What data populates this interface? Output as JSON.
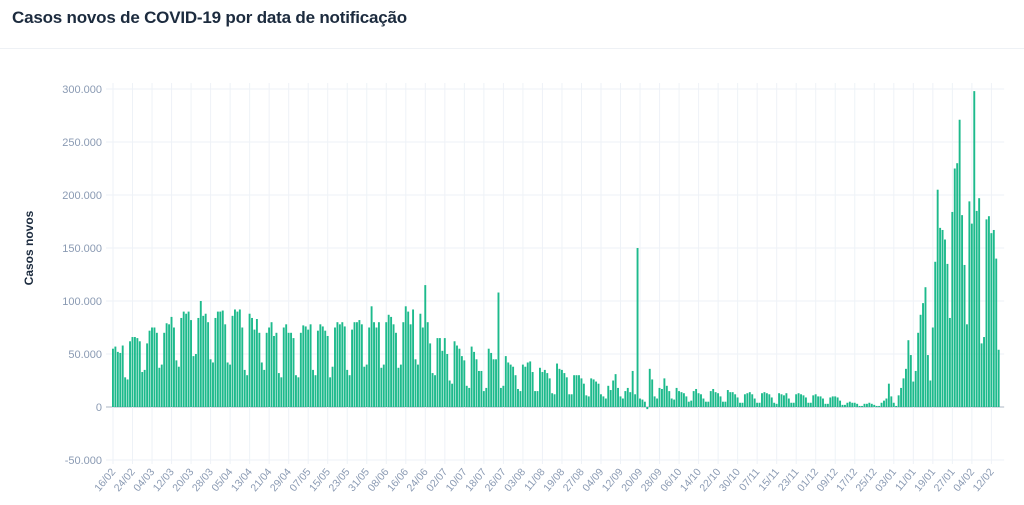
{
  "title": "Casos novos de COVID-19 por data de notificação",
  "chart_data": {
    "type": "bar",
    "title": "Casos novos de COVID-19 por data de notificação",
    "xlabel": "",
    "ylabel": "Casos novos",
    "ylim": [
      -50000,
      300000
    ],
    "yticks": [
      300000,
      250000,
      200000,
      150000,
      100000,
      50000,
      0,
      -50000
    ],
    "ytick_labels": [
      "300.000",
      "250.000",
      "200.000",
      "150.000",
      "100.000",
      "50.000",
      "0",
      "-50.000"
    ],
    "x_start": "16/02",
    "x_tick_every_days": 8,
    "x_tick_labels": [
      "16/02",
      "24/02",
      "04/03",
      "12/03",
      "20/03",
      "28/03",
      "05/04",
      "13/04",
      "21/04",
      "29/04",
      "07/05",
      "15/05",
      "23/05",
      "31/05",
      "08/06",
      "16/06",
      "24/06",
      "02/07",
      "10/07",
      "18/07",
      "26/07",
      "03/08",
      "11/08",
      "19/08",
      "27/08",
      "04/09",
      "12/09",
      "20/09",
      "28/09",
      "06/10",
      "14/10",
      "22/10",
      "30/10",
      "07/11",
      "15/11",
      "23/11",
      "01/12",
      "09/12",
      "17/12",
      "25/12",
      "03/01",
      "11/01",
      "19/01",
      "27/01",
      "04/02",
      "12/02"
    ],
    "grid": true,
    "bar_color": "#1dba8c",
    "values": [
      55000,
      57000,
      52000,
      51000,
      58000,
      28000,
      26000,
      62000,
      66000,
      66000,
      65000,
      62000,
      33000,
      35000,
      60000,
      72000,
      75000,
      75000,
      70000,
      37000,
      40000,
      70000,
      79000,
      78000,
      85000,
      75000,
      44000,
      38000,
      84000,
      90000,
      88000,
      90000,
      82000,
      48000,
      50000,
      84000,
      100000,
      86000,
      88000,
      80000,
      45000,
      42000,
      84000,
      90000,
      90000,
      91000,
      78000,
      42000,
      40000,
      86000,
      92000,
      90000,
      92000,
      75000,
      35000,
      30000,
      88000,
      84000,
      73000,
      83000,
      70000,
      42000,
      35000,
      70000,
      75000,
      80000,
      67000,
      70000,
      32000,
      28000,
      75000,
      78000,
      70000,
      70000,
      65000,
      30000,
      28000,
      70000,
      77000,
      76000,
      73000,
      78000,
      35000,
      30000,
      72000,
      78000,
      76000,
      72000,
      67000,
      28000,
      38000,
      75000,
      80000,
      78000,
      80000,
      76000,
      35000,
      30000,
      73000,
      80000,
      80000,
      82000,
      78000,
      38000,
      40000,
      75000,
      95000,
      80000,
      75000,
      80000,
      37000,
      40000,
      80000,
      87000,
      85000,
      78000,
      70000,
      37000,
      40000,
      80000,
      95000,
      90000,
      78000,
      92000,
      45000,
      40000,
      88000,
      75000,
      115000,
      80000,
      60000,
      32000,
      30000,
      65000,
      65000,
      53000,
      65000,
      50000,
      25000,
      22000,
      62000,
      58000,
      55000,
      48000,
      44000,
      20000,
      18000,
      57000,
      52000,
      45000,
      34000,
      34000,
      15000,
      18000,
      55000,
      51000,
      45000,
      45000,
      108000,
      18000,
      20000,
      48000,
      42000,
      40000,
      38000,
      30000,
      17000,
      15000,
      40000,
      38000,
      42000,
      43000,
      33000,
      15000,
      15000,
      37000,
      33000,
      35000,
      32000,
      27000,
      13000,
      12000,
      41000,
      36000,
      35000,
      32000,
      28000,
      12000,
      12000,
      30000,
      30000,
      30000,
      27000,
      22000,
      11000,
      10000,
      27000,
      26000,
      24000,
      22000,
      12000,
      10000,
      8000,
      20000,
      16000,
      25000,
      31000,
      18000,
      10000,
      8000,
      15000,
      18000,
      14000,
      34000,
      12000,
      150000,
      8000,
      7000,
      5000,
      -2000,
      36000,
      26000,
      10000,
      8000,
      18000,
      17000,
      27000,
      20000,
      15000,
      8000,
      7000,
      18000,
      15000,
      14000,
      13000,
      10000,
      5000,
      6000,
      15000,
      17000,
      13000,
      12000,
      8000,
      5000,
      5000,
      15000,
      17000,
      14000,
      13000,
      10000,
      5000,
      5000,
      16000,
      14000,
      14000,
      12000,
      9000,
      4000,
      4000,
      12000,
      13000,
      14000,
      12000,
      8000,
      4000,
      4000,
      13000,
      14000,
      13000,
      12000,
      9000,
      4000,
      3000,
      13000,
      12000,
      11000,
      13000,
      8000,
      4000,
      4000,
      12000,
      13000,
      12000,
      11000,
      9000,
      4000,
      4000,
      11000,
      12000,
      10000,
      10000,
      8000,
      3000,
      3000,
      9000,
      10000,
      10000,
      9000,
      6000,
      2000,
      2000,
      4000,
      5000,
      4000,
      4000,
      3000,
      1000,
      1000,
      3000,
      3000,
      4000,
      3000,
      2000,
      1000,
      1000,
      4000,
      6000,
      8000,
      22000,
      10000,
      4000,
      1000,
      11000,
      18000,
      27000,
      36000,
      63000,
      49000,
      24000,
      34000,
      70000,
      87000,
      98000,
      113000,
      49000,
      25000,
      75000,
      137000,
      205000,
      169000,
      167000,
      158000,
      135000,
      84000,
      184000,
      225000,
      230000,
      271000,
      181000,
      134000,
      78000,
      194000,
      173000,
      298000,
      185000,
      197000,
      60000,
      66000,
      177000,
      180000,
      164000,
      167000,
      140000,
      54000
    ]
  }
}
